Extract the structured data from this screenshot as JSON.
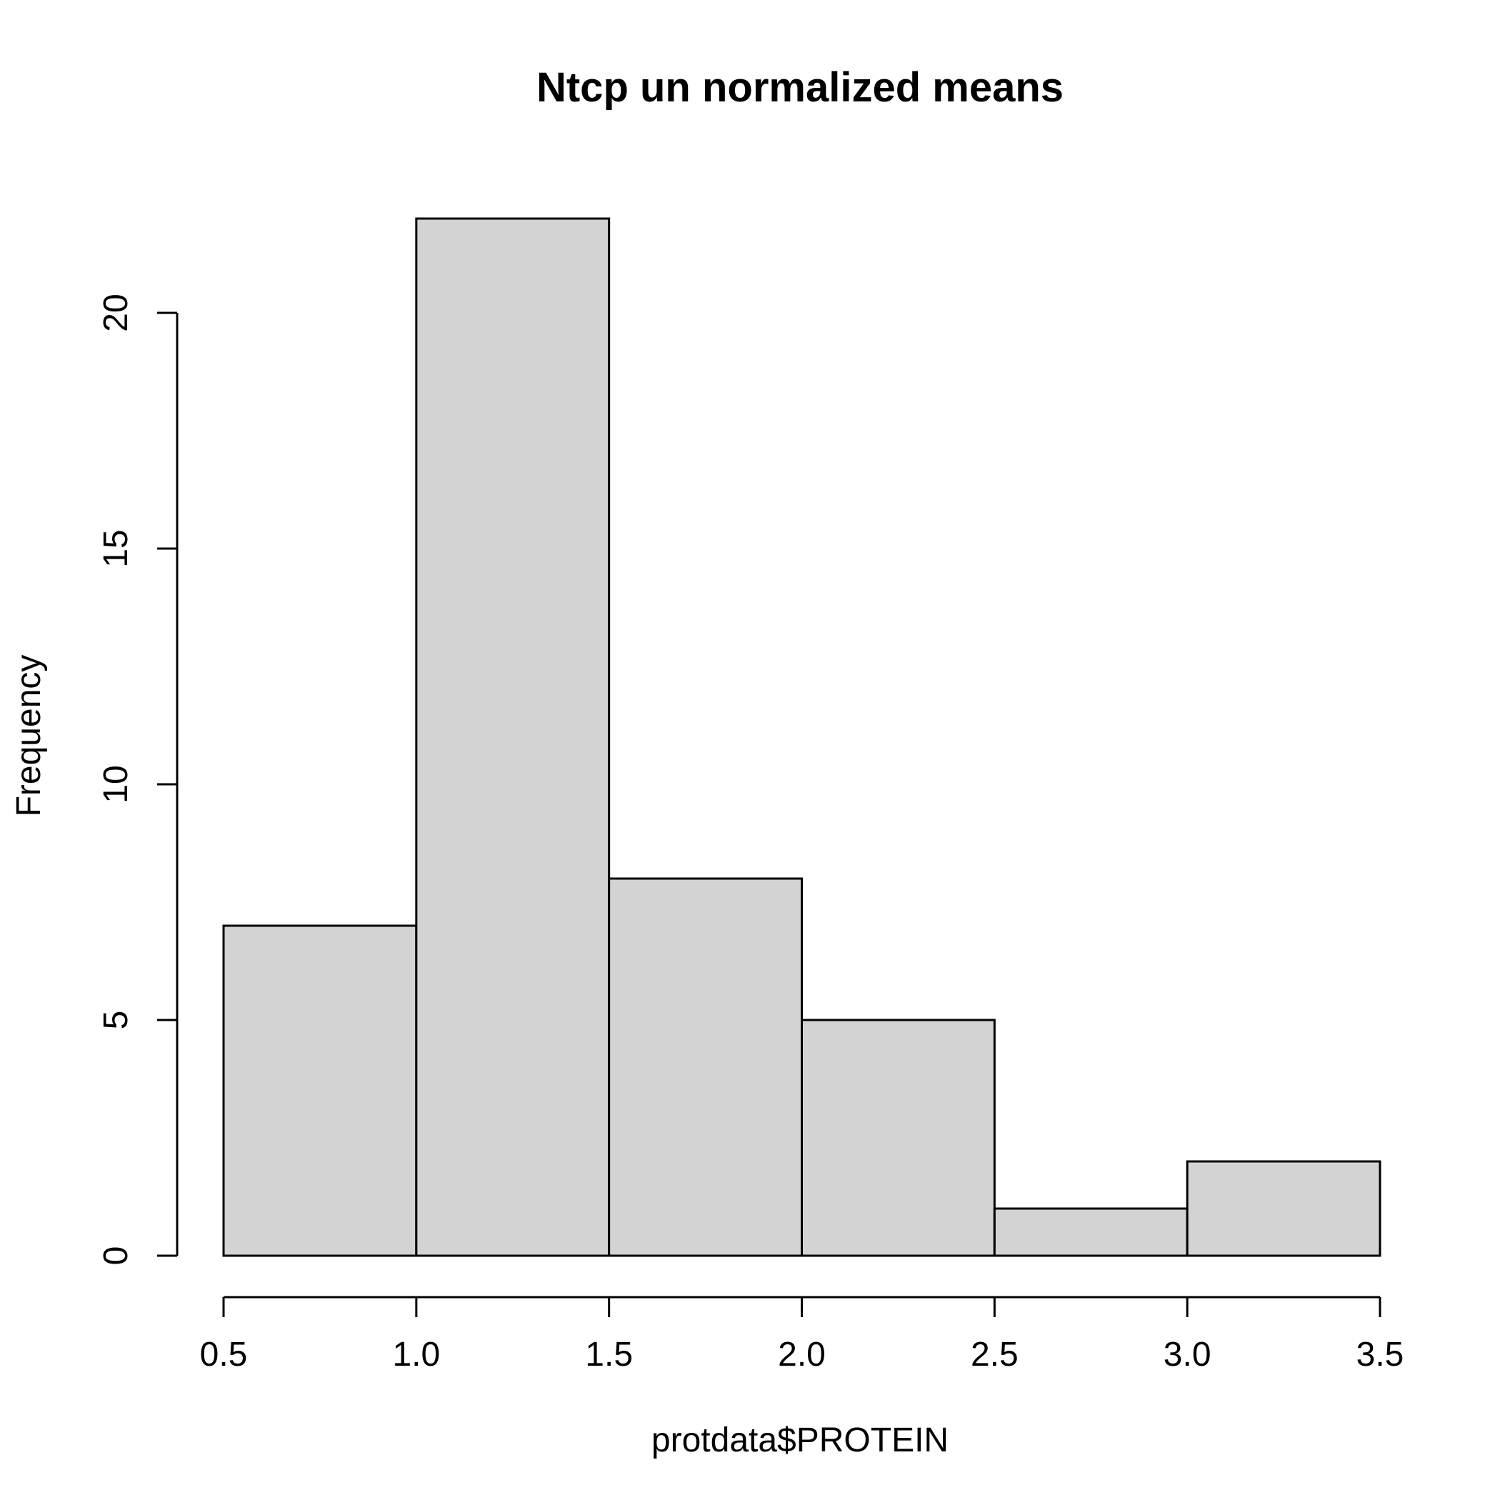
{
  "chart_data": {
    "type": "bar",
    "subtype": "histogram",
    "title": "Ntcp un normalized means",
    "xlabel": "protdata$PROTEIN",
    "ylabel": "Frequency",
    "bins": [
      {
        "from": 0.5,
        "to": 1.0,
        "count": 7
      },
      {
        "from": 1.0,
        "to": 1.5,
        "count": 22
      },
      {
        "from": 1.5,
        "to": 2.0,
        "count": 8
      },
      {
        "from": 2.0,
        "to": 2.5,
        "count": 5
      },
      {
        "from": 2.5,
        "to": 3.0,
        "count": 1
      },
      {
        "from": 3.0,
        "to": 3.5,
        "count": 2
      }
    ],
    "xlim": [
      0.5,
      3.5
    ],
    "ylim": [
      0,
      22
    ],
    "x_ticks": [
      "0.5",
      "1.0",
      "1.5",
      "2.0",
      "2.5",
      "3.0",
      "3.5"
    ],
    "y_ticks": [
      "0",
      "5",
      "10",
      "15",
      "20"
    ],
    "bar_color": "#d3d3d3",
    "edge_color": "#000000",
    "grid": false,
    "legend": "none"
  }
}
